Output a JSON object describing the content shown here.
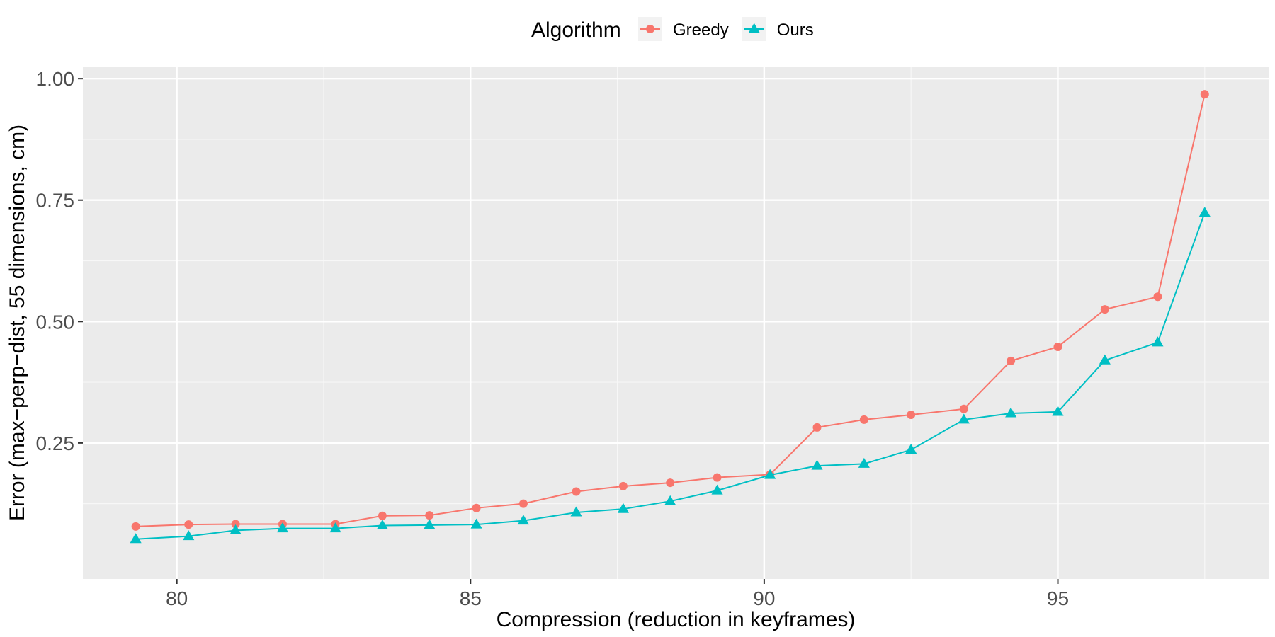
{
  "chart_data": {
    "type": "line",
    "xlabel": "Compression (reduction in keyframes)",
    "ylabel": "Error (max−perp−dist, 55 dimensions, cm)",
    "xlim": [
      78.4,
      98.6
    ],
    "ylim": [
      -0.03,
      1.025
    ],
    "x_ticks": [
      80,
      85,
      90,
      95
    ],
    "x_tick_labels": [
      "80",
      "85",
      "90",
      "95"
    ],
    "y_ticks": [
      0.25,
      0.5,
      0.75,
      1.0
    ],
    "y_tick_labels": [
      "0.25",
      "0.50",
      "0.75",
      "1.00"
    ],
    "grid": true,
    "legend": {
      "title": "Algorithm",
      "position": "top"
    },
    "series": [
      {
        "name": "Greedy",
        "color": "#F8766D",
        "marker": "circle",
        "x": [
          79.3,
          80.2,
          81.0,
          81.8,
          82.7,
          83.5,
          84.3,
          85.1,
          85.9,
          86.8,
          87.6,
          88.4,
          89.2,
          90.1,
          90.9,
          91.7,
          92.5,
          93.4,
          94.2,
          95.0,
          95.8,
          96.7,
          97.5
        ],
        "y": [
          0.078,
          0.082,
          0.083,
          0.083,
          0.083,
          0.1,
          0.101,
          0.116,
          0.125,
          0.15,
          0.161,
          0.168,
          0.179,
          0.185,
          0.282,
          0.298,
          0.308,
          0.32,
          0.419,
          0.448,
          0.525,
          0.551,
          0.968
        ]
      },
      {
        "name": "Ours",
        "color": "#00BFC4",
        "marker": "triangle",
        "x": [
          79.3,
          80.2,
          81.0,
          81.8,
          82.7,
          83.5,
          84.3,
          85.1,
          85.9,
          86.8,
          87.6,
          88.4,
          89.2,
          90.1,
          90.9,
          91.7,
          92.5,
          93.4,
          94.2,
          95.0,
          95.8,
          96.7,
          97.5
        ],
        "y": [
          0.052,
          0.058,
          0.07,
          0.074,
          0.074,
          0.08,
          0.081,
          0.082,
          0.09,
          0.107,
          0.114,
          0.13,
          0.152,
          0.184,
          0.203,
          0.207,
          0.236,
          0.298,
          0.311,
          0.314,
          0.42,
          0.457,
          0.724
        ]
      }
    ]
  }
}
